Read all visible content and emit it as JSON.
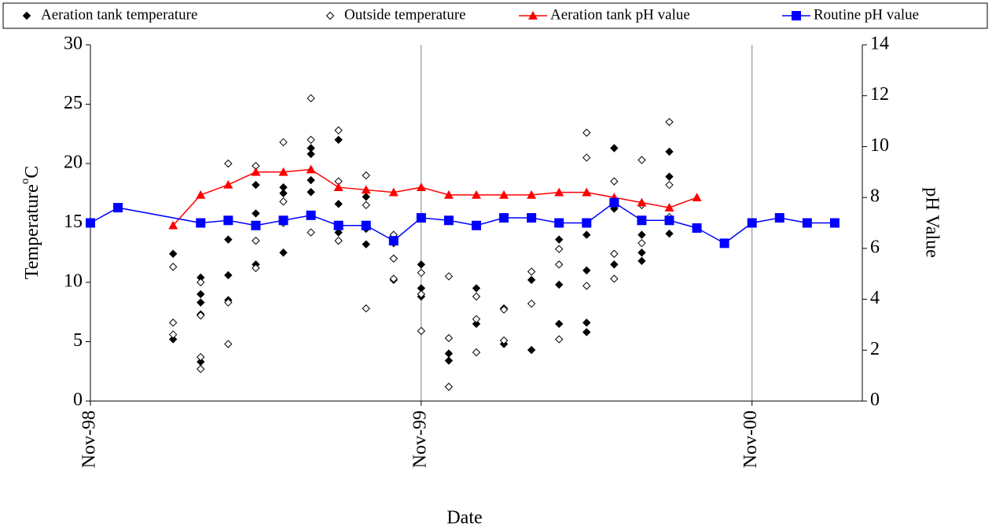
{
  "chart_data": {
    "type": "combo",
    "xlabel": "Date",
    "ylabel": "Temperature",
    "ylabel_sup": "o",
    "ylabel_unit": "C",
    "y2label": "pH Value",
    "xlim": [
      "1998-11",
      "2001-03"
    ],
    "xticks": [
      {
        "value": "1998-11",
        "label": "Nov-98"
      },
      {
        "value": "1999-11",
        "label": "Nov-99"
      },
      {
        "value": "2000-11",
        "label": "Nov-00"
      }
    ],
    "ylim": [
      0,
      30
    ],
    "yticks": [
      0,
      5,
      10,
      15,
      20,
      25,
      30
    ],
    "y2lim": [
      0,
      14
    ],
    "y2ticks": [
      0,
      2,
      4,
      6,
      8,
      10,
      12,
      14
    ],
    "grid": true,
    "series": [
      {
        "name": "Aeration tank temperature",
        "type": "scatter",
        "marker": "diamond-filled",
        "color": "#000000",
        "axis": "y",
        "x": [
          "1999-02",
          "1999-02",
          "1999-03",
          "1999-03",
          "1999-03",
          "1999-03",
          "1999-03",
          "1999-04",
          "1999-04",
          "1999-04",
          "1999-05",
          "1999-05",
          "1999-05",
          "1999-06",
          "1999-06",
          "1999-06",
          "1999-07",
          "1999-07",
          "1999-07",
          "1999-07",
          "1999-08",
          "1999-08",
          "1999-08",
          "1999-09",
          "1999-09",
          "1999-09",
          "1999-10",
          "1999-10",
          "1999-10",
          "1999-11",
          "1999-11",
          "1999-11",
          "1999-12",
          "1999-12",
          "2000-01",
          "2000-01",
          "2000-02",
          "2000-02",
          "2000-03",
          "2000-03",
          "2000-04",
          "2000-04",
          "2000-04",
          "2000-05",
          "2000-05",
          "2000-05",
          "2000-05",
          "2000-06",
          "2000-06",
          "2000-06",
          "2000-07",
          "2000-07",
          "2000-07",
          "2000-08",
          "2000-08",
          "2000-08"
        ],
        "values": [
          5.2,
          12.4,
          8.3,
          3.3,
          7.3,
          10.4,
          9.0,
          13.6,
          8.5,
          10.6,
          11.5,
          18.2,
          15.8,
          12.5,
          18.0,
          17.5,
          21.3,
          17.6,
          18.6,
          20.8,
          22.0,
          14.2,
          16.6,
          13.2,
          17.2,
          14.5,
          12.0,
          10.2,
          13.3,
          9.5,
          8.8,
          11.5,
          3.4,
          4.0,
          6.5,
          9.5,
          7.8,
          4.8,
          4.3,
          10.2,
          6.5,
          9.8,
          13.6,
          5.8,
          6.6,
          11.0,
          14.0,
          21.3,
          11.5,
          16.2,
          11.8,
          12.5,
          14.0,
          18.9,
          14.1,
          21.0
        ]
      },
      {
        "name": "Outside temperature",
        "type": "scatter",
        "marker": "diamond-open",
        "color": "#000000",
        "axis": "y",
        "x": [
          "1999-02",
          "1999-02",
          "1999-02",
          "1999-03",
          "1999-03",
          "1999-03",
          "1999-03",
          "1999-04",
          "1999-04",
          "1999-04",
          "1999-05",
          "1999-05",
          "1999-05",
          "1999-06",
          "1999-06",
          "1999-06",
          "1999-07",
          "1999-07",
          "1999-07",
          "1999-08",
          "1999-08",
          "1999-08",
          "1999-09",
          "1999-09",
          "1999-09",
          "1999-10",
          "1999-10",
          "1999-10",
          "1999-11",
          "1999-11",
          "1999-11",
          "1999-12",
          "1999-12",
          "1999-12",
          "2000-01",
          "2000-01",
          "2000-01",
          "2000-02",
          "2000-02",
          "2000-03",
          "2000-03",
          "2000-04",
          "2000-04",
          "2000-04",
          "2000-05",
          "2000-05",
          "2000-05",
          "2000-06",
          "2000-06",
          "2000-06",
          "2000-07",
          "2000-07",
          "2000-07",
          "2000-08",
          "2000-08",
          "2000-08"
        ],
        "values": [
          6.6,
          11.3,
          5.6,
          2.7,
          7.2,
          3.7,
          10.0,
          4.8,
          8.3,
          20.0,
          19.8,
          11.2,
          13.5,
          15.0,
          21.8,
          16.8,
          25.5,
          22.0,
          14.2,
          22.8,
          18.5,
          13.5,
          19.0,
          7.8,
          16.5,
          10.3,
          14.0,
          12.0,
          9.0,
          5.9,
          10.8,
          5.3,
          10.5,
          1.2,
          4.1,
          6.9,
          8.8,
          5.1,
          7.7,
          10.9,
          8.2,
          11.5,
          5.2,
          12.8,
          20.5,
          22.6,
          9.7,
          10.3,
          18.5,
          12.4,
          16.5,
          20.3,
          13.3,
          23.5,
          18.2,
          15.5
        ]
      },
      {
        "name": "Aeration tank pH value",
        "type": "line",
        "marker": "triangle",
        "color": "#ff0000",
        "axis": "y2",
        "x": [
          "1999-02",
          "1999-03",
          "1999-04",
          "1999-05",
          "1999-06",
          "1999-07",
          "1999-08",
          "1999-09",
          "1999-10",
          "1999-11",
          "1999-12",
          "2000-01",
          "2000-02",
          "2000-03",
          "2000-04",
          "2000-05",
          "2000-06",
          "2000-07",
          "2000-08",
          "2000-09"
        ],
        "values": [
          6.9,
          8.1,
          8.5,
          9.0,
          9.0,
          9.1,
          8.4,
          8.3,
          8.2,
          8.4,
          8.1,
          8.1,
          8.1,
          8.1,
          8.2,
          8.2,
          8.0,
          7.8,
          7.6,
          8.0
        ]
      },
      {
        "name": "Routine pH value",
        "type": "line",
        "marker": "square",
        "color": "#0000ff",
        "axis": "y2",
        "x": [
          "1998-11",
          "1998-12",
          "1999-03",
          "1999-04",
          "1999-05",
          "1999-06",
          "1999-07",
          "1999-08",
          "1999-09",
          "1999-10",
          "1999-11",
          "1999-12",
          "2000-01",
          "2000-02",
          "2000-03",
          "2000-04",
          "2000-05",
          "2000-06",
          "2000-07",
          "2000-08",
          "2000-09",
          "2000-10",
          "2000-11",
          "2000-12",
          "2001-01",
          "2001-02"
        ],
        "values": [
          7.0,
          7.6,
          7.0,
          7.1,
          6.9,
          7.1,
          7.3,
          6.9,
          6.9,
          6.3,
          7.2,
          7.1,
          6.9,
          7.2,
          7.2,
          7.0,
          7.0,
          7.8,
          7.1,
          7.1,
          6.8,
          6.2,
          7.0,
          7.2,
          7.0,
          7.0
        ]
      }
    ]
  }
}
